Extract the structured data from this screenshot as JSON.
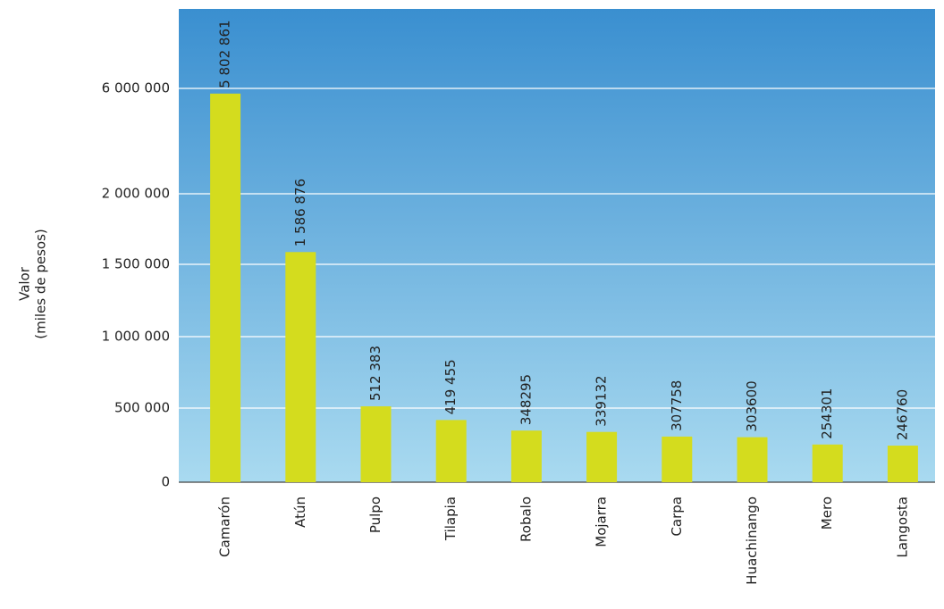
{
  "chart_data": {
    "type": "bar",
    "y_label": [
      "Valor",
      "(miles de pesos)"
    ],
    "categories": [
      "Camarón",
      "Atún",
      "Pulpo",
      "Tilapia",
      "Robalo",
      "Mojarra",
      "Carpa",
      "Huachinango",
      "Mero",
      "Langosta"
    ],
    "values": [
      5802861,
      1586876,
      512383,
      419455,
      348295,
      339132,
      307758,
      303600,
      254301,
      246760
    ],
    "value_labels": [
      "5 802 861",
      "1 586 876",
      "512 383",
      "419 455",
      "348295",
      "339132",
      "307758",
      "303600",
      "254301",
      "246760"
    ],
    "color": "#d4dc1e",
    "ylim": [
      0,
      6000000
    ],
    "yticks": [
      0,
      {
        "value": 500000,
        "label": "500 000"
      },
      {
        "value": 1000000,
        "label": "1 000 000"
      },
      {
        "value": 1500000,
        "label": "1 500 000"
      },
      {
        "value": 2000000,
        "label": "2 000 000"
      },
      {
        "value": 6000000,
        "label": "6 000 000"
      }
    ],
    "grid": true
  }
}
